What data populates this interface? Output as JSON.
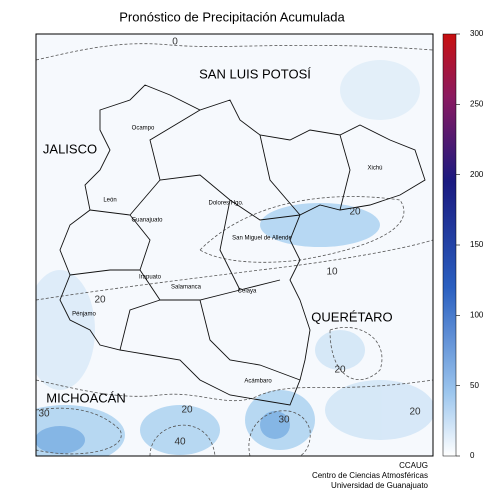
{
  "title": "Pronóstico de Precipitación Acumulada",
  "states": [
    "SAN LUIS POTOSÍ",
    "JALISCO",
    "QUERÉTARO",
    "MICHOACÁN"
  ],
  "cities": [
    "Ocampo",
    "León",
    "Guanajuato",
    "Dolores Hgo.",
    "San Miguel de Allende",
    "Xichú",
    "Irapuato",
    "Salamanca",
    "Celaya",
    "Pénjamo",
    "Acámbaro"
  ],
  "contour_labels": [
    0,
    20,
    10,
    20,
    20,
    30,
    20,
    40,
    30,
    20
  ],
  "colorbar": {
    "lim": [
      0,
      300
    ],
    "ticks": [
      0,
      50,
      100,
      150,
      200,
      250,
      300
    ]
  },
  "footer": [
    "CCAUG",
    "Centro de Ciencias Atmosféricas",
    "Universidad de Guanajuato"
  ]
}
